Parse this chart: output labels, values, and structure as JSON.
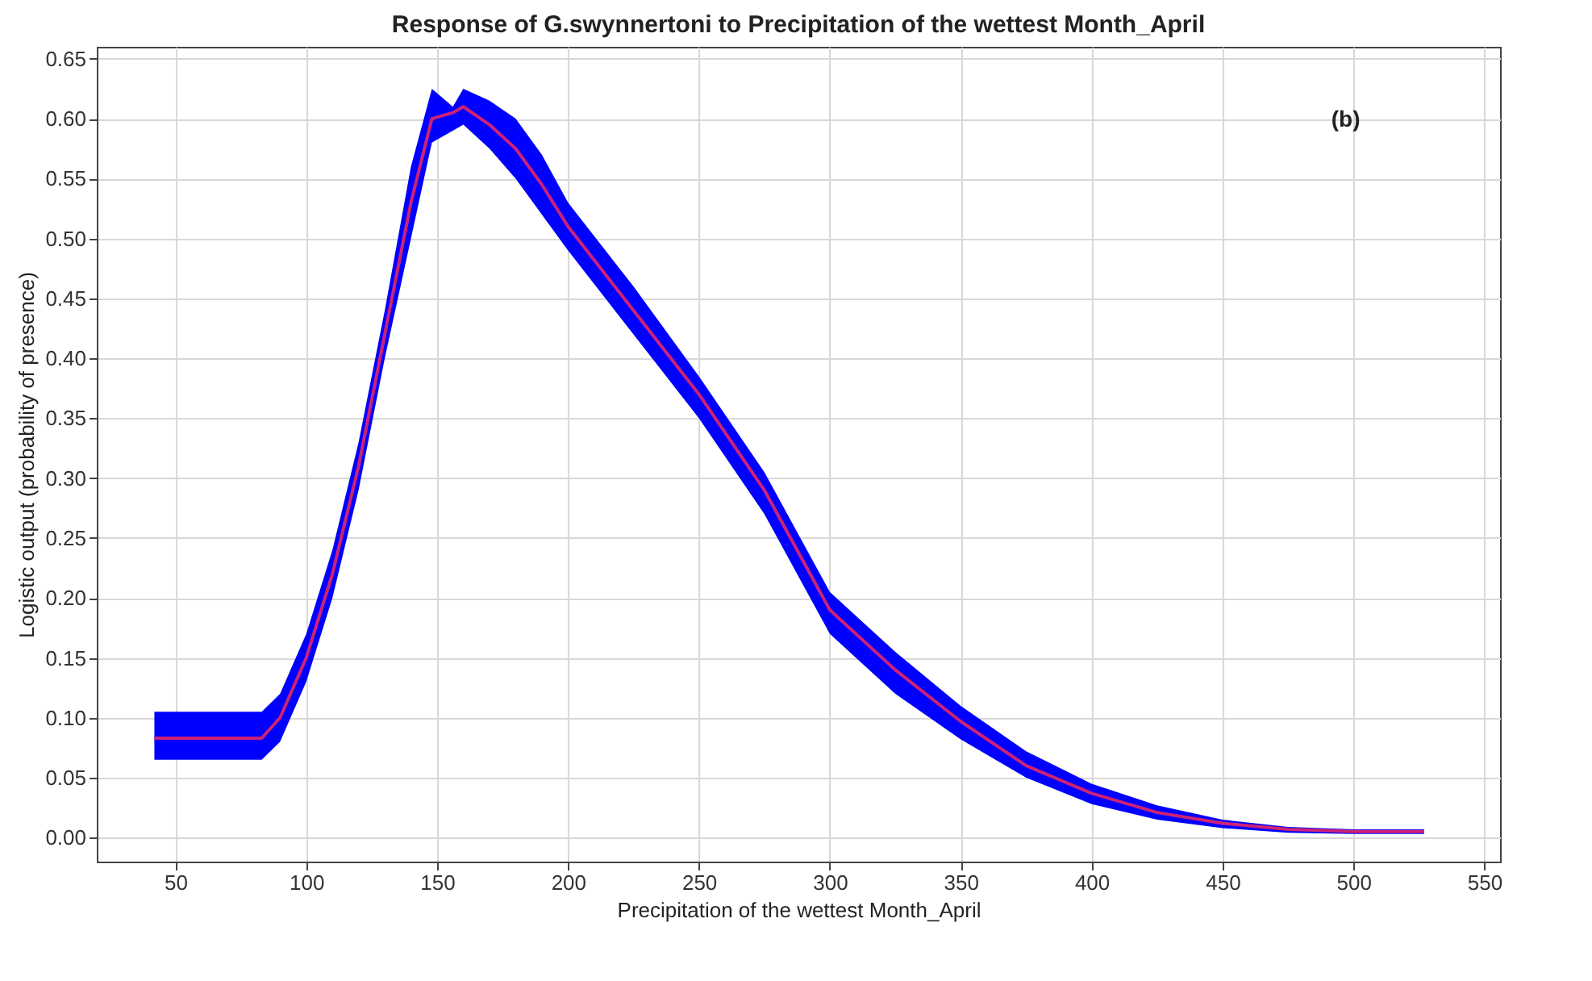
{
  "chart_data": {
    "type": "line",
    "title": "Response of G.swynnertoni to Precipitation of the wettest Month_April",
    "xlabel": "Precipitation of the wettest Month_April",
    "ylabel": "Logistic output (probability of presence)",
    "annotations": [
      "(b)"
    ],
    "x": [
      42,
      83,
      90,
      100,
      110,
      120,
      130,
      140,
      148,
      156,
      160,
      170,
      180,
      190,
      200,
      225,
      250,
      275,
      300,
      325,
      350,
      375,
      400,
      425,
      450,
      475,
      500,
      527
    ],
    "series": [
      {
        "color": "#cc2277",
        "values": [
          0.083,
          0.083,
          0.1,
          0.15,
          0.22,
          0.31,
          0.42,
          0.53,
          0.6,
          0.605,
          0.61,
          0.595,
          0.575,
          0.545,
          0.51,
          0.44,
          0.37,
          0.29,
          0.19,
          0.14,
          0.097,
          0.06,
          0.037,
          0.021,
          0.012,
          0.007,
          0.005,
          0.005
        ],
        "upper": [
          0.105,
          0.105,
          0.12,
          0.17,
          0.24,
          0.33,
          0.44,
          0.56,
          0.625,
          0.61,
          0.625,
          0.615,
          0.6,
          0.57,
          0.53,
          0.46,
          0.385,
          0.305,
          0.205,
          0.155,
          0.11,
          0.072,
          0.045,
          0.027,
          0.015,
          0.009,
          0.007,
          0.007
        ],
        "lower": [
          0.065,
          0.065,
          0.08,
          0.13,
          0.2,
          0.29,
          0.4,
          0.5,
          0.58,
          0.59,
          0.595,
          0.575,
          0.55,
          0.52,
          0.49,
          0.42,
          0.35,
          0.27,
          0.17,
          0.12,
          0.082,
          0.05,
          0.028,
          0.015,
          0.008,
          0.004,
          0.003,
          0.003
        ]
      }
    ],
    "xlim": [
      20,
      556
    ],
    "xticks": [
      50,
      100,
      150,
      200,
      250,
      300,
      350,
      400,
      450,
      500,
      550
    ],
    "ylim": [
      -0.02,
      0.66
    ],
    "yticks": [
      {
        "value": 0,
        "label": "0.00"
      },
      0.05,
      {
        "value": 0.1,
        "label": "0.10"
      },
      0.15,
      {
        "value": 0.2,
        "label": "0.20"
      },
      0.25,
      {
        "value": 0.3,
        "label": "0.30"
      },
      0.35,
      {
        "value": 0.4,
        "label": "0.40"
      },
      0.45,
      {
        "value": 0.5,
        "label": "0.50"
      },
      0.55,
      {
        "value": 0.6,
        "label": "0.60"
      },
      0.65
    ],
    "grid": true,
    "marker": "none",
    "line_style": "solid"
  }
}
